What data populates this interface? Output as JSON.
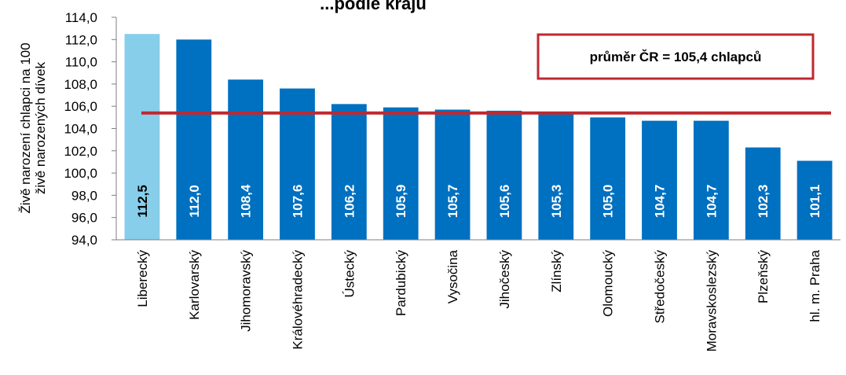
{
  "chart_data": {
    "type": "bar",
    "title": "...podle krajů",
    "ylabel": "Živě narození chlapci na 100 živě narozených dívek",
    "ylabel_lines": [
      "Živě narození chlapci na 100",
      "živě narozených dívek"
    ],
    "ylim": [
      94,
      114
    ],
    "ytick_step": 2,
    "categories": [
      "Liberecký",
      "Karlovarský",
      "Jihomoravský",
      "Královéhradecký",
      "Ústecký",
      "Pardubický",
      "Vysočina",
      "Jihočeský",
      "Zlínský",
      "Olomoucký",
      "Středočeský",
      "Moravskoslezský",
      "Plzeňský",
      "hl. m. Praha"
    ],
    "values": [
      112.5,
      112.0,
      108.4,
      107.6,
      106.2,
      105.9,
      105.7,
      105.6,
      105.3,
      105.0,
      104.7,
      104.7,
      102.3,
      101.1
    ],
    "data_labels": [
      "112,5",
      "112,0",
      "108,4",
      "107,6",
      "106,2",
      "105,9",
      "105,7",
      "105,6",
      "105,3",
      "105,0",
      "104,7",
      "104,7",
      "102,3",
      "101,1"
    ],
    "highlight_index": 0,
    "reference_line": {
      "value": 105.4,
      "label": "průměr ČR = 105,4 chlapců"
    },
    "grid": false,
    "colors": {
      "bar": "#0070C0",
      "highlight": "#87CEEB",
      "reference": "#C0282F",
      "axis": "#7f7f7f"
    }
  }
}
